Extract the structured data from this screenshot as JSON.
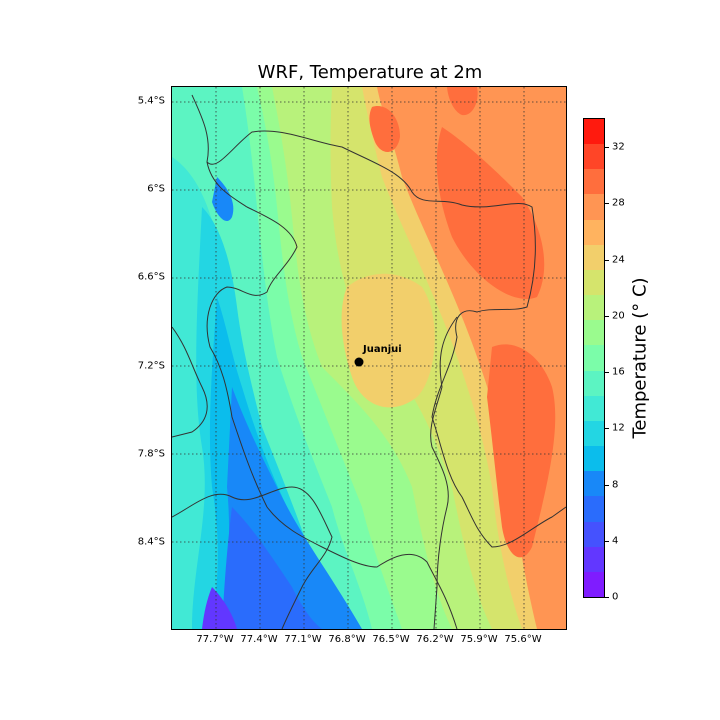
{
  "title": "WRF, Temperature at 2m",
  "lat_ticks": [
    "5.4°S",
    "6°S",
    "6.6°S",
    "7.2°S",
    "7.8°S",
    "8.4°S"
  ],
  "lon_ticks": [
    "77.7°W",
    "77.4°W",
    "77.1°W",
    "76.8°W",
    "76.5°W",
    "76.2°W",
    "75.9°W",
    "75.6°W"
  ],
  "colorbar": {
    "label": "Temperature (° C)",
    "ticks": [
      "0",
      "4",
      "8",
      "12",
      "16",
      "20",
      "24",
      "28",
      "32"
    ],
    "min": 0,
    "max": 34,
    "colors": [
      "#7f1cff",
      "#6237ff",
      "#4552fe",
      "#2a6cfc",
      "#1888f8",
      "#0bbdec",
      "#23d6e3",
      "#41e9d5",
      "#5cf4c2",
      "#7bfda9",
      "#9afb8e",
      "#b8f27b",
      "#d5e46c",
      "#f2cf6b",
      "#ffb35f",
      "#ff9553",
      "#ff6e3d",
      "#ff4527",
      "#ff1a0e"
    ]
  },
  "marker": {
    "name": "Juanjui"
  }
}
